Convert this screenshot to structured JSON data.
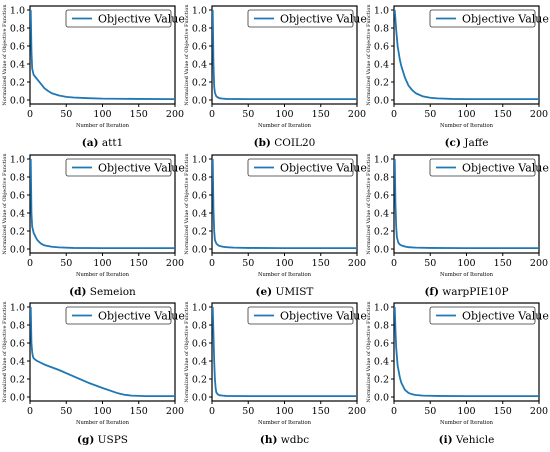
{
  "chart_data": [
    {
      "type": "line",
      "panel_label": "(a)",
      "panel_name": "att1",
      "xlabel": "Number of Iteration",
      "ylabel": "Normalized Value of Objective Function",
      "xlim": [
        0,
        200
      ],
      "ylim": [
        0,
        1
      ],
      "xticks": [
        0,
        50,
        100,
        150,
        200
      ],
      "yticks": [
        0.0,
        0.2,
        0.4,
        0.6,
        0.8,
        1.0
      ],
      "legend": "top-right",
      "series": [
        {
          "name": "Objective Value",
          "color": "#1f77b4",
          "x": [
            1,
            2,
            3,
            5,
            8,
            10,
            15,
            20,
            25,
            30,
            40,
            50,
            60,
            80,
            100,
            150,
            200
          ],
          "y": [
            1.0,
            0.55,
            0.35,
            0.28,
            0.25,
            0.23,
            0.18,
            0.13,
            0.1,
            0.075,
            0.05,
            0.035,
            0.028,
            0.02,
            0.015,
            0.012,
            0.01
          ]
        }
      ]
    },
    {
      "type": "line",
      "panel_label": "(b)",
      "panel_name": "COIL20",
      "xlabel": "Number of Iteration",
      "ylabel": "Normalized Value of Objective Function",
      "xlim": [
        0,
        200
      ],
      "ylim": [
        0,
        1
      ],
      "xticks": [
        0,
        50,
        100,
        150,
        200
      ],
      "yticks": [
        0.0,
        0.2,
        0.4,
        0.6,
        0.8,
        1.0
      ],
      "legend": "top-right",
      "series": [
        {
          "name": "Objective Value",
          "color": "#1f77b4",
          "x": [
            1,
            2,
            3,
            4,
            6,
            8,
            10,
            15,
            20,
            50,
            100,
            200
          ],
          "y": [
            1.0,
            0.4,
            0.15,
            0.08,
            0.04,
            0.03,
            0.02,
            0.015,
            0.012,
            0.01,
            0.01,
            0.01
          ]
        }
      ]
    },
    {
      "type": "line",
      "panel_label": "(c)",
      "panel_name": "Jaffe",
      "xlabel": "Number of Iteration",
      "ylabel": "Normalized Value of Objective Function",
      "xlim": [
        0,
        200
      ],
      "ylim": [
        0,
        1
      ],
      "xticks": [
        0,
        50,
        100,
        150,
        200
      ],
      "yticks": [
        0.0,
        0.2,
        0.4,
        0.6,
        0.8,
        1.0
      ],
      "legend": "top-right",
      "series": [
        {
          "name": "Objective Value",
          "color": "#1f77b4",
          "x": [
            1,
            3,
            5,
            8,
            10,
            15,
            20,
            25,
            30,
            40,
            50,
            60,
            80,
            100,
            150,
            200
          ],
          "y": [
            1.0,
            0.78,
            0.6,
            0.45,
            0.38,
            0.25,
            0.16,
            0.11,
            0.075,
            0.04,
            0.025,
            0.018,
            0.012,
            0.01,
            0.01,
            0.01
          ]
        }
      ]
    },
    {
      "type": "line",
      "panel_label": "(d)",
      "panel_name": "Semeion",
      "xlabel": "Number of Iteration",
      "ylabel": "Normalized Value of Objective Function",
      "xlim": [
        0,
        200
      ],
      "ylim": [
        0,
        1
      ],
      "xticks": [
        0,
        50,
        100,
        150,
        200
      ],
      "yticks": [
        0.0,
        0.2,
        0.4,
        0.6,
        0.8,
        1.0
      ],
      "legend": "top-right",
      "series": [
        {
          "name": "Objective Value",
          "color": "#1f77b4",
          "x": [
            1,
            2,
            3,
            5,
            8,
            10,
            15,
            20,
            30,
            40,
            60,
            100,
            200
          ],
          "y": [
            1.0,
            0.4,
            0.25,
            0.18,
            0.13,
            0.1,
            0.06,
            0.04,
            0.025,
            0.018,
            0.012,
            0.01,
            0.01
          ]
        }
      ]
    },
    {
      "type": "line",
      "panel_label": "(e)",
      "panel_name": "UMIST",
      "xlabel": "Number of Iteration",
      "ylabel": "Normalized Value of Objective Function",
      "xlim": [
        0,
        200
      ],
      "ylim": [
        0,
        1
      ],
      "xticks": [
        0,
        50,
        100,
        150,
        200
      ],
      "yticks": [
        0.0,
        0.2,
        0.4,
        0.6,
        0.8,
        1.0
      ],
      "legend": "top-right",
      "series": [
        {
          "name": "Objective Value",
          "color": "#1f77b4",
          "x": [
            1,
            2,
            3,
            4,
            6,
            8,
            10,
            15,
            20,
            30,
            50,
            100,
            200
          ],
          "y": [
            1.0,
            0.45,
            0.2,
            0.1,
            0.06,
            0.045,
            0.035,
            0.025,
            0.02,
            0.015,
            0.012,
            0.01,
            0.01
          ]
        }
      ]
    },
    {
      "type": "line",
      "panel_label": "(f)",
      "panel_name": "warpPIE10P",
      "xlabel": "Number of Iteration",
      "ylabel": "Normalized Value of Objective Function",
      "xlim": [
        0,
        200
      ],
      "ylim": [
        0,
        1
      ],
      "xticks": [
        0,
        50,
        100,
        150,
        200
      ],
      "yticks": [
        0.0,
        0.2,
        0.4,
        0.6,
        0.8,
        1.0
      ],
      "legend": "top-right",
      "series": [
        {
          "name": "Objective Value",
          "color": "#1f77b4",
          "x": [
            1,
            2,
            3,
            4,
            6,
            8,
            10,
            15,
            20,
            30,
            50,
            100,
            200
          ],
          "y": [
            1.0,
            0.5,
            0.25,
            0.13,
            0.07,
            0.05,
            0.04,
            0.028,
            0.02,
            0.015,
            0.012,
            0.01,
            0.01
          ]
        }
      ]
    },
    {
      "type": "line",
      "panel_label": "(g)",
      "panel_name": "USPS",
      "xlabel": "Number of Iteration",
      "ylabel": "Normalized Value of Objective Function",
      "xlim": [
        0,
        200
      ],
      "ylim": [
        0,
        1
      ],
      "xticks": [
        0,
        50,
        100,
        150,
        200
      ],
      "yticks": [
        0.0,
        0.2,
        0.4,
        0.6,
        0.8,
        1.0
      ],
      "legend": "top-right",
      "series": [
        {
          "name": "Objective Value",
          "color": "#1f77b4",
          "x": [
            1,
            2,
            3,
            4,
            5,
            8,
            10,
            20,
            40,
            60,
            80,
            100,
            120,
            130,
            140,
            160,
            180,
            200
          ],
          "y": [
            1.0,
            0.6,
            0.5,
            0.45,
            0.43,
            0.41,
            0.4,
            0.36,
            0.3,
            0.23,
            0.16,
            0.1,
            0.045,
            0.025,
            0.015,
            0.01,
            0.01,
            0.01
          ]
        }
      ]
    },
    {
      "type": "line",
      "panel_label": "(h)",
      "panel_name": "wdbc",
      "xlabel": "Number of Iteration",
      "ylabel": "Normalized Value of Objective Function",
      "xlim": [
        0,
        200
      ],
      "ylim": [
        0,
        1
      ],
      "xticks": [
        0,
        50,
        100,
        150,
        200
      ],
      "yticks": [
        0.0,
        0.2,
        0.4,
        0.6,
        0.8,
        1.0
      ],
      "legend": "top-right",
      "series": [
        {
          "name": "Objective Value",
          "color": "#1f77b4",
          "x": [
            1,
            2,
            3,
            4,
            5,
            6,
            8,
            10,
            15,
            20,
            50,
            100,
            200
          ],
          "y": [
            1.0,
            0.7,
            0.4,
            0.2,
            0.1,
            0.05,
            0.03,
            0.02,
            0.015,
            0.012,
            0.01,
            0.01,
            0.01
          ]
        }
      ]
    },
    {
      "type": "line",
      "panel_label": "(i)",
      "panel_name": "Vehicle",
      "xlabel": "Number of Iteration",
      "ylabel": "Normalized Value of Objective Function",
      "xlim": [
        0,
        200
      ],
      "ylim": [
        0,
        1
      ],
      "xticks": [
        0,
        50,
        100,
        150,
        200
      ],
      "yticks": [
        0.0,
        0.2,
        0.4,
        0.6,
        0.8,
        1.0
      ],
      "legend": "top-right",
      "series": [
        {
          "name": "Objective Value",
          "color": "#1f77b4",
          "x": [
            1,
            2,
            3,
            5,
            8,
            10,
            15,
            20,
            25,
            30,
            40,
            60,
            100,
            200
          ],
          "y": [
            1.0,
            0.75,
            0.55,
            0.35,
            0.22,
            0.16,
            0.08,
            0.045,
            0.03,
            0.022,
            0.015,
            0.012,
            0.01,
            0.01
          ]
        }
      ]
    }
  ]
}
